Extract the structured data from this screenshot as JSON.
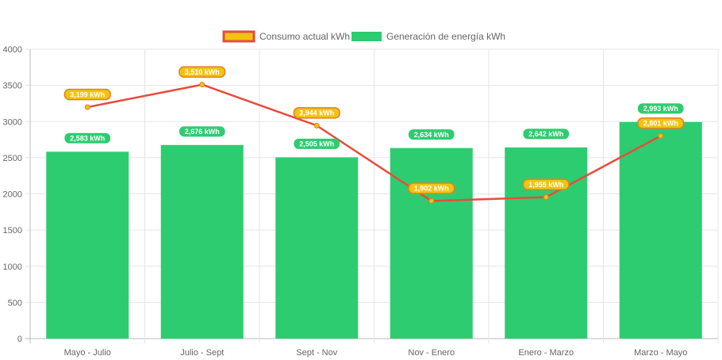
{
  "chart_data": {
    "type": "bar",
    "categories": [
      "Mayo - Julio",
      "Julio - Sept",
      "Sept - Nov",
      "Nov - Enero",
      "Enero - Marzo",
      "Marzo - Mayo"
    ],
    "series": [
      {
        "name": "Consumo actual kWh",
        "kind": "line",
        "values": [
          3199,
          3510,
          2944,
          1902,
          1955,
          2801
        ],
        "labels": [
          "3,199 kWh",
          "3,510 kWh",
          "2,944 kWh",
          "1,902 kWh",
          "1,955 kWh",
          "2,801 kWh"
        ],
        "color": "#e74c3c",
        "label_color": "#f1c40f"
      },
      {
        "name": "Generación de energía kWh",
        "kind": "bar",
        "values": [
          2583,
          2676,
          2505,
          2634,
          2642,
          2993
        ],
        "labels": [
          "2,583 kWh",
          "2,676 kWh",
          "2,505 kWh",
          "2,634 kWh",
          "2,642 kWh",
          "2,993 kWh"
        ],
        "color": "#2ecc71"
      }
    ],
    "ylim": [
      0,
      4000
    ],
    "yticks": [
      "0",
      "500",
      "1000",
      "1500",
      "2000",
      "2500",
      "3000",
      "3500",
      "4000"
    ],
    "grid": true,
    "legend_position": "top"
  }
}
